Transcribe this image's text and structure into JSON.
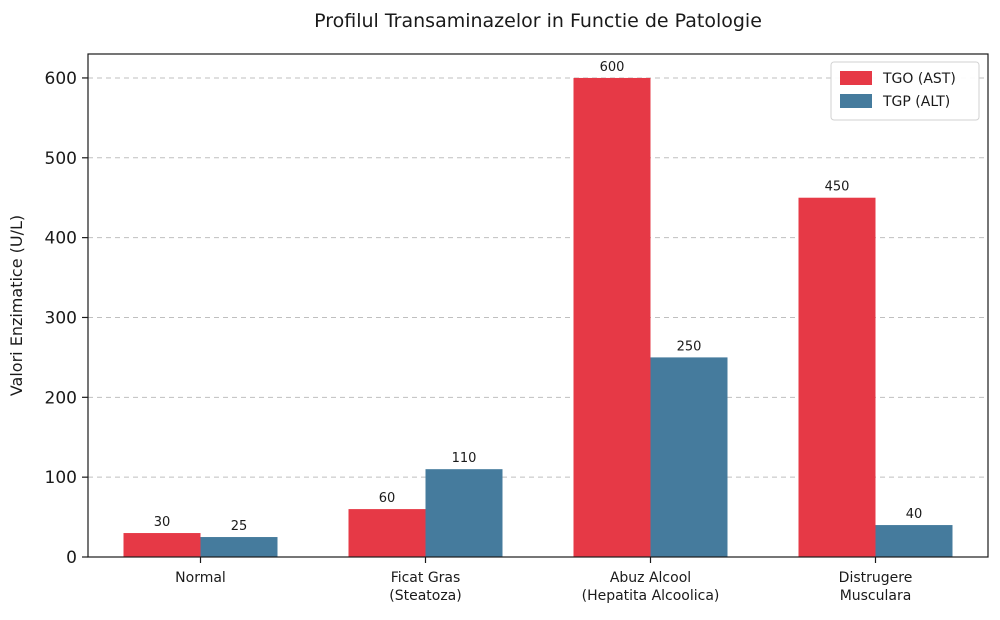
{
  "chart_data": {
    "type": "bar",
    "title": "Profilul Transaminazelor in Functie de Patologie",
    "xlabel": "",
    "ylabel": "Valori Enzimatice (U/L)",
    "ylim": [
      0,
      630
    ],
    "yticks": [
      0,
      100,
      200,
      300,
      400,
      500,
      600
    ],
    "grid": "y-dashed",
    "legend_position": "top-right",
    "categories": [
      [
        "Normal"
      ],
      [
        "Ficat Gras",
        "(Steatoza)"
      ],
      [
        "Abuz Alcool",
        "(Hepatita Alcoolica)"
      ],
      [
        "Distrugere",
        "Musculara"
      ]
    ],
    "series": [
      {
        "name": "TGO (AST)",
        "color": "#e63946",
        "values": [
          30,
          60,
          600,
          450
        ]
      },
      {
        "name": "TGP (ALT)",
        "color": "#457b9d",
        "values": [
          25,
          110,
          250,
          40
        ]
      }
    ]
  }
}
